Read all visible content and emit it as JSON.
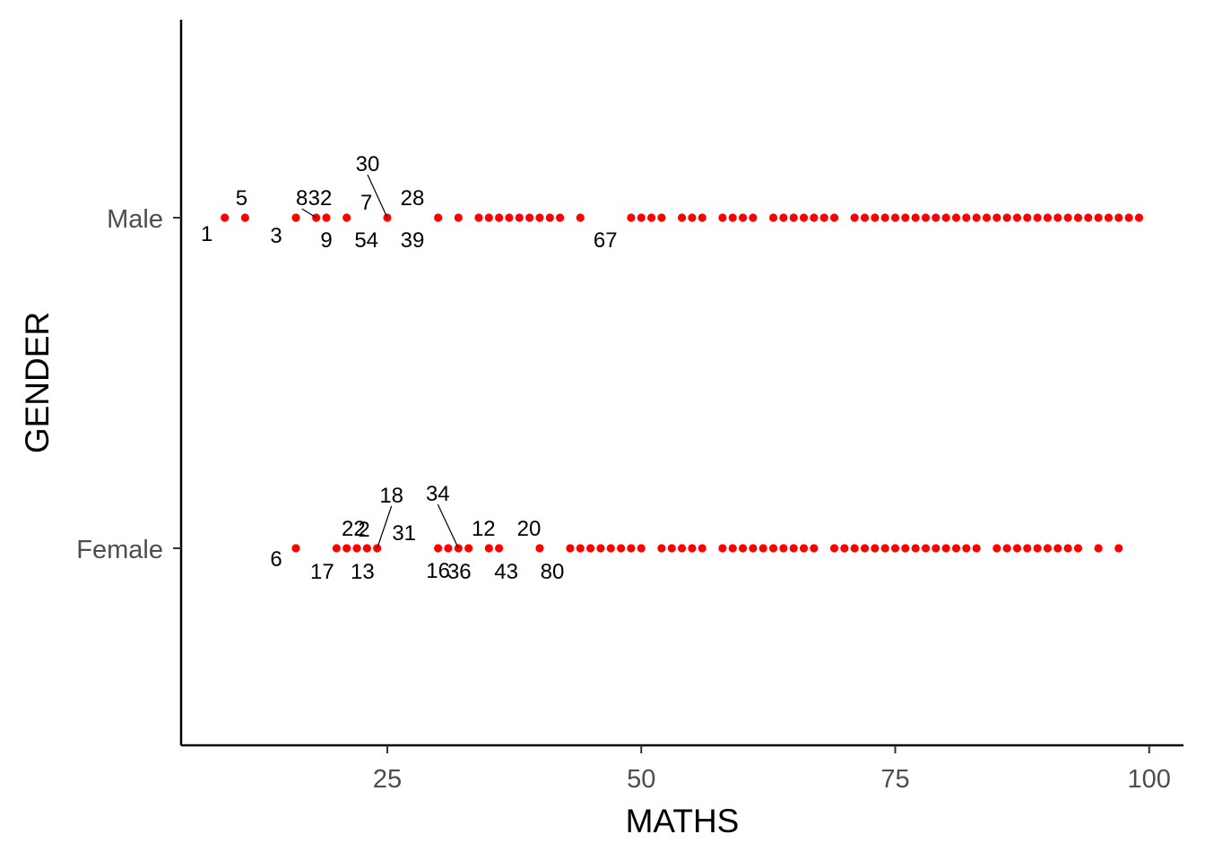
{
  "chart_data": {
    "type": "scatter",
    "title": "",
    "xlabel": "MATHS",
    "ylabel": "GENDER",
    "xlim": [
      5,
      101
    ],
    "x_ticks": [
      25,
      50,
      75,
      100
    ],
    "categories": [
      "Male",
      "Female"
    ],
    "point_color": "#ff0000",
    "grid": false,
    "series": [
      {
        "category": "Male",
        "values": [
          9,
          11,
          16,
          18,
          19,
          21,
          25,
          30,
          32,
          34,
          35,
          36,
          37,
          38,
          39,
          40,
          41,
          42,
          44,
          49,
          50,
          51,
          52,
          54,
          55,
          56,
          58,
          59,
          60,
          61,
          63,
          64,
          65,
          66,
          67,
          68,
          69,
          71,
          72,
          73,
          74,
          75,
          76,
          77,
          78,
          79,
          80,
          81,
          82,
          83,
          84,
          85,
          86,
          87,
          88,
          89,
          90,
          91,
          92,
          93,
          94,
          95,
          96,
          97,
          98,
          99
        ]
      },
      {
        "category": "Female",
        "values": [
          16,
          20,
          21,
          22,
          23,
          24,
          30,
          31,
          32,
          33,
          35,
          36,
          40,
          43,
          44,
          45,
          46,
          47,
          48,
          49,
          50,
          52,
          53,
          54,
          55,
          56,
          58,
          59,
          60,
          61,
          62,
          63,
          64,
          65,
          66,
          67,
          69,
          70,
          71,
          72,
          73,
          74,
          75,
          76,
          77,
          78,
          79,
          80,
          81,
          82,
          83,
          85,
          86,
          87,
          88,
          89,
          90,
          91,
          92,
          93,
          95,
          97
        ]
      }
    ],
    "annotations": [
      {
        "text": "1",
        "category": "Male",
        "x": 9
      },
      {
        "text": "5",
        "category": "Male",
        "x": 11
      },
      {
        "text": "3",
        "category": "Male",
        "x": 16
      },
      {
        "text": "8",
        "category": "Male",
        "x": 18
      },
      {
        "text": "32",
        "category": "Male",
        "x": 19
      },
      {
        "text": "9",
        "category": "Male",
        "x": 19
      },
      {
        "text": "7",
        "category": "Male",
        "x": 21
      },
      {
        "text": "54",
        "category": "Male",
        "x": 21
      },
      {
        "text": "30",
        "category": "Male",
        "x": 25
      },
      {
        "text": "28",
        "category": "Male",
        "x": 25
      },
      {
        "text": "39",
        "category": "Male",
        "x": 25
      },
      {
        "text": "67",
        "category": "Male",
        "x": 44
      },
      {
        "text": "6",
        "category": "Female",
        "x": 16
      },
      {
        "text": "22",
        "category": "Female",
        "x": 20
      },
      {
        "text": "17",
        "category": "Female",
        "x": 20
      },
      {
        "text": "2",
        "category": "Female",
        "x": 22
      },
      {
        "text": "13",
        "category": "Female",
        "x": 23
      },
      {
        "text": "18",
        "category": "Female",
        "x": 24
      },
      {
        "text": "31",
        "category": "Female",
        "x": 24
      },
      {
        "text": "16",
        "category": "Female",
        "x": 30
      },
      {
        "text": "34",
        "category": "Female",
        "x": 32
      },
      {
        "text": "36",
        "category": "Female",
        "x": 32
      },
      {
        "text": "12",
        "category": "Female",
        "x": 35
      },
      {
        "text": "43",
        "category": "Female",
        "x": 36
      },
      {
        "text": "20",
        "category": "Female",
        "x": 40
      },
      {
        "text": "80",
        "category": "Female",
        "x": 40
      }
    ]
  }
}
